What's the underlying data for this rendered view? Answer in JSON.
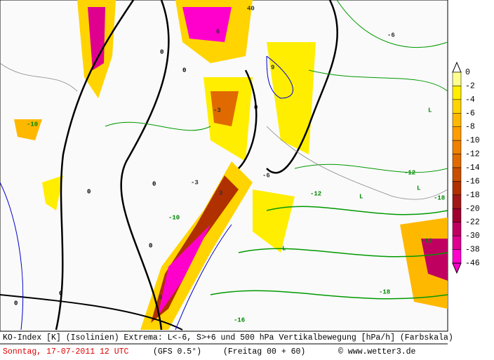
{
  "map": {
    "labels": [
      "0",
      "0",
      "0",
      "0",
      "0",
      "0",
      "0",
      "0",
      "-3",
      "-3",
      "-6",
      "-6",
      "-10",
      "-10",
      "-12",
      "-12",
      "-12",
      "-18",
      "-18",
      "-16",
      "L",
      "L",
      "L",
      "L",
      "3",
      "6",
      "9",
      "9",
      "40"
    ]
  },
  "colorbar": {
    "labels": [
      "0",
      "-2",
      "-4",
      "-6",
      "-8",
      "-10",
      "-12",
      "-14",
      "-16",
      "-18",
      "-20",
      "-22",
      "-30",
      "-38",
      "-46"
    ],
    "colors": [
      "#ffff90",
      "#ffee00",
      "#ffd400",
      "#ffb800",
      "#ff9c00",
      "#f08000",
      "#e06a00",
      "#c85000",
      "#b03000",
      "#a01818",
      "#a00030",
      "#c00060",
      "#e00090",
      "#ff00cc"
    ]
  },
  "footer": {
    "line1": "KO-Index [K] (Isolinien) Extrema: L<-6, S>+6 und 500 hPa Vertikalbewegung [hPa/h] (Farbskala)",
    "date": "Sonntag, 17-07-2011  12 UTC",
    "model": "(GFS 0.5°)",
    "run": "(Freitag 00 + 60)",
    "credit": "© www.wetter3.de"
  }
}
